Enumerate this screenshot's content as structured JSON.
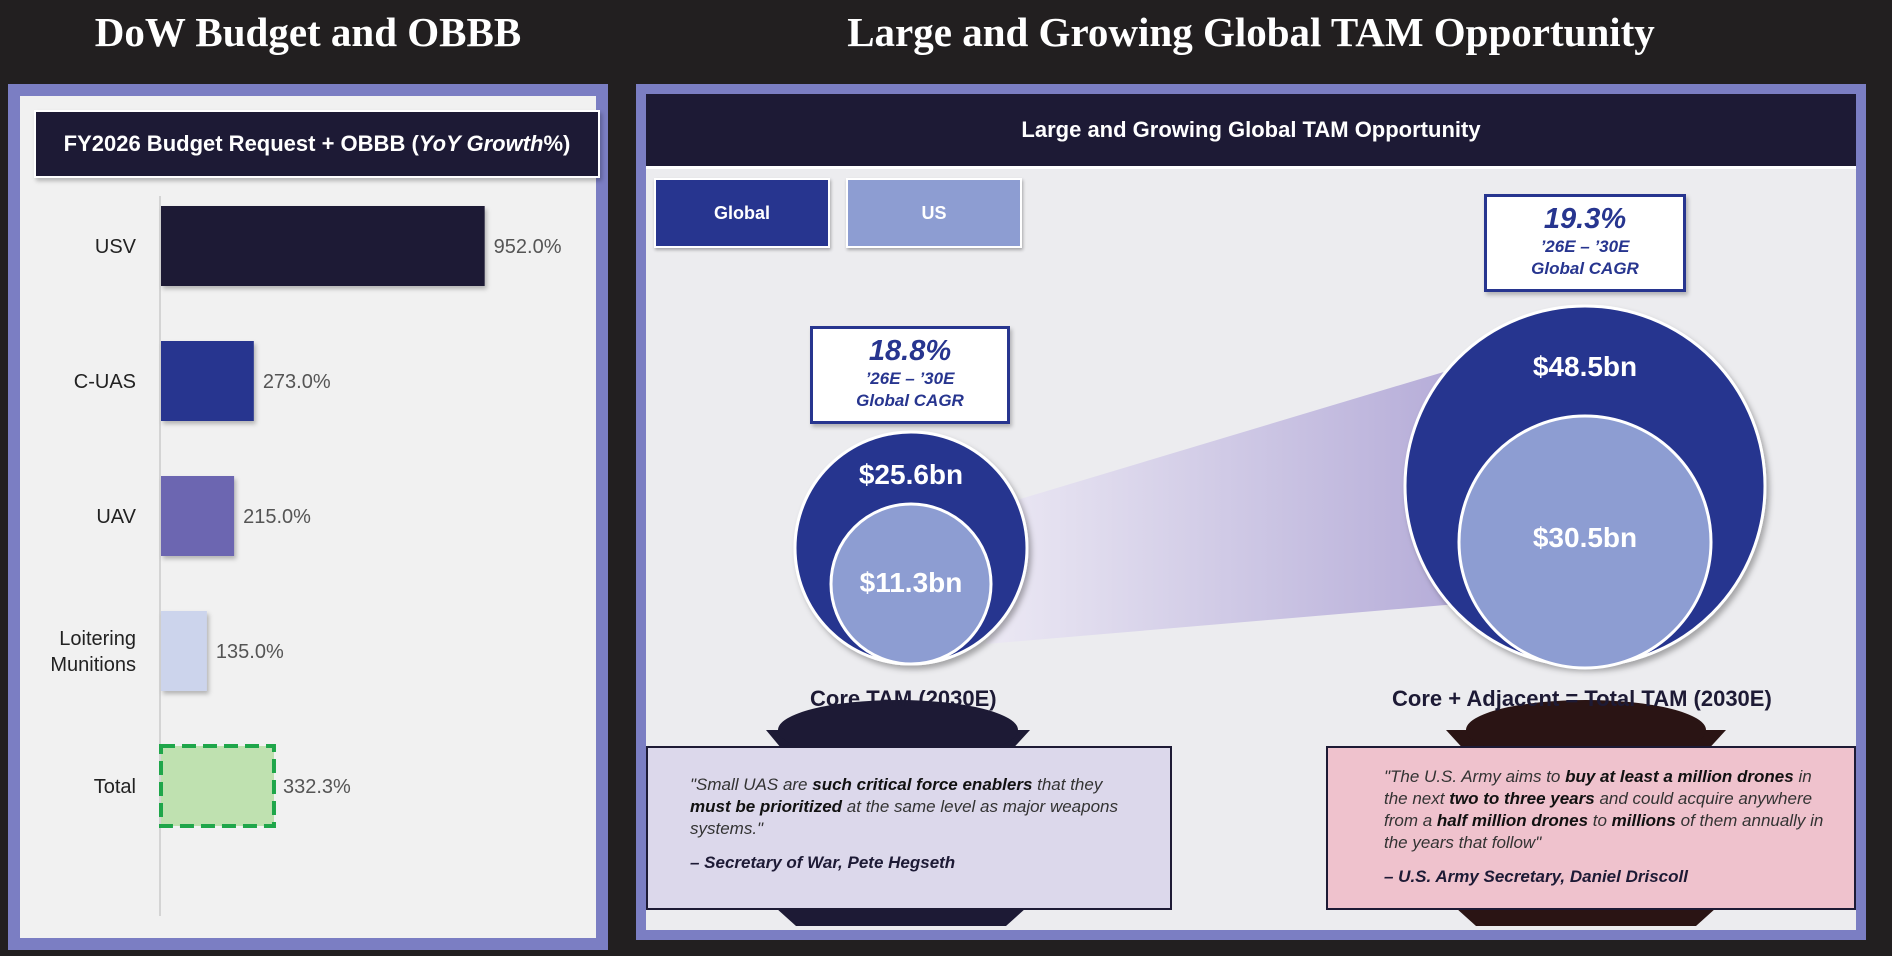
{
  "headings": {
    "left": "DoW Budget and OBBB",
    "right": "Large and Growing Global TAM Opportunity"
  },
  "left_panel": {
    "title_prefix": "FY2026 Budget Request + OBBB (",
    "title_emph": "YoY Growth",
    "title_suffix": " %)"
  },
  "right_panel": {
    "title": "Large and Growing Global TAM Opportunity",
    "tabs": {
      "global": "Global",
      "us": "US"
    },
    "core": {
      "cagr_pct": "18.8%",
      "cagr_period": "’26E – ’30E",
      "cagr_label": "Global CAGR",
      "outer_value": "$25.6bn",
      "inner_value": "$11.3bn",
      "label": "Core TAM (2030E)"
    },
    "total": {
      "cagr_pct": "19.3%",
      "cagr_period": "’26E – ’30E",
      "cagr_label": "Global CAGR",
      "outer_value": "$48.5bn",
      "inner_value": "$30.5bn",
      "label": "Core + Adjacent = Total TAM (2030E)"
    },
    "quote_left": {
      "t1": "\"Small UAS are ",
      "b1": "such critical force enablers",
      "t2": " that they ",
      "b2": "must be prioritized",
      "t3": " at the same level as major weapons systems.\"",
      "author": "– Secretary of War, Pete Hegseth"
    },
    "quote_right": {
      "t1": "\"The U.S. Army aims to ",
      "b1": "buy at least a million drones",
      "t2": " in the next ",
      "b2": "two to three years",
      "t3": " and could acquire anywhere from a ",
      "b3": "half million drones",
      "t4": " to ",
      "b4": "millions",
      "t5": " of them annually in the years that follow\"",
      "author": "– U.S. Army Secretary, Daniel Driscoll"
    }
  },
  "colors": {
    "navy": "#1d1a35",
    "royal": "#27358f",
    "periwinkle": "#8d9dd2",
    "purple": "#6c66b1",
    "pale": "#ccd4ec",
    "green": "#bfe1b0",
    "green_border": "#1fa64a",
    "quote_left_bg": "#dcd8eb",
    "quote_right_bg": "#efc2cd"
  },
  "chart_data": {
    "type": "bar",
    "orientation": "horizontal",
    "categories": [
      "USV",
      "C-UAS",
      "UAV",
      "Loitering Munitions",
      "Total"
    ],
    "values": [
      952.0,
      273.0,
      215.0,
      135.0,
      332.3
    ],
    "value_labels": [
      "952.0%",
      "273.0%",
      "215.0%",
      "135.0%",
      "332.3%"
    ],
    "bar_colors": [
      "#1d1a35",
      "#27358f",
      "#6c66b1",
      "#ccd4ec",
      "#bfe1b0"
    ],
    "xlim": [
      0,
      1000
    ],
    "grid": false
  }
}
